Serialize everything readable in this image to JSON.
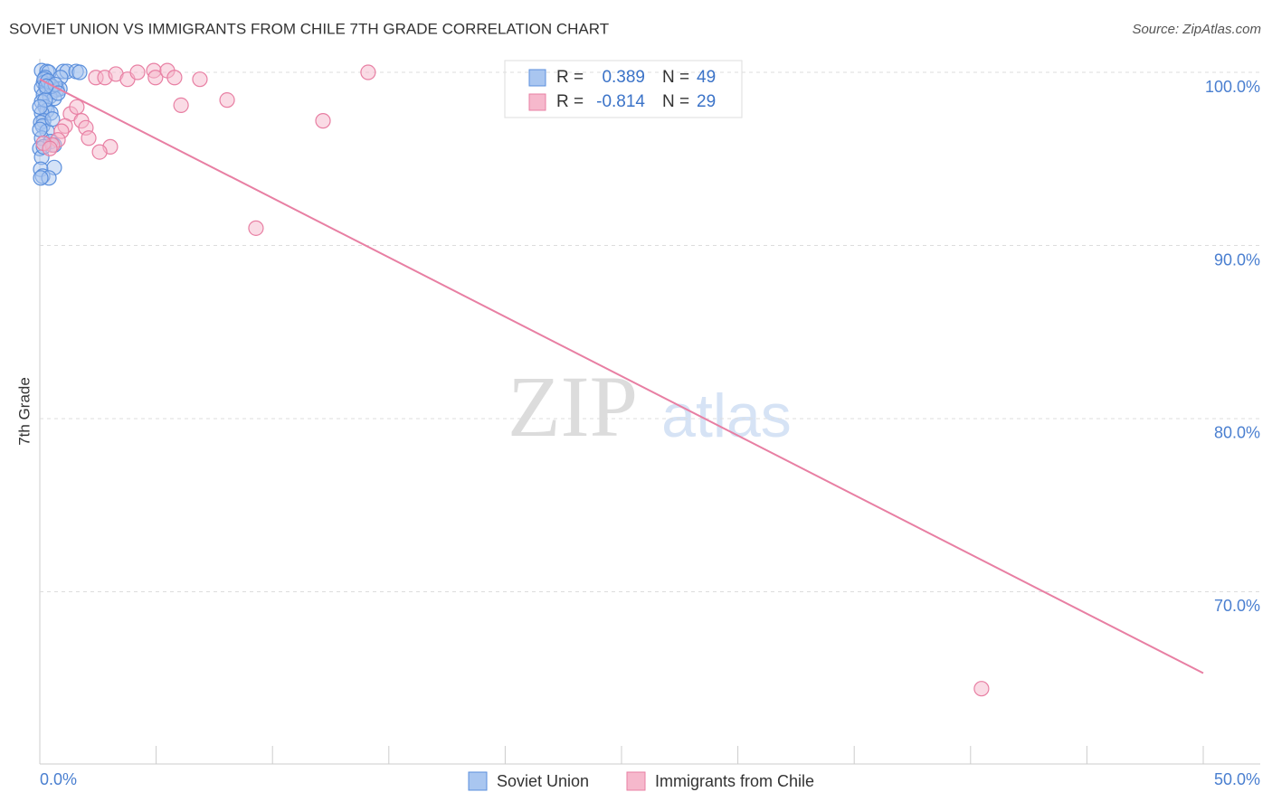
{
  "chart_data": {
    "type": "scatter",
    "title": "SOVIET UNION VS IMMIGRANTS FROM CHILE 7TH GRADE CORRELATION CHART",
    "source": "Source: ZipAtlas.com",
    "y_label": "7th Grade",
    "watermark": [
      "ZIP",
      "atlas"
    ],
    "xlim": [
      0,
      50
    ],
    "ylim": [
      60.05,
      100.8
    ],
    "xticks": [
      {
        "value": 0,
        "label": "0.0%"
      },
      {
        "value": 50,
        "label": "50.0%"
      }
    ],
    "xminorticks": [
      5,
      10,
      15,
      20,
      25,
      30,
      35,
      40,
      45
    ],
    "yticks": [
      {
        "value": 70,
        "label": "70.0%"
      },
      {
        "value": 80,
        "label": "80.0%"
      },
      {
        "value": 90,
        "label": "90.0%"
      },
      {
        "value": 100,
        "label": "100.0%"
      }
    ],
    "grid": true,
    "stat_labels": [
      "R =",
      "N ="
    ],
    "series": [
      {
        "name": "Soviet Union",
        "color": "#5b8fdc",
        "fill": "#a9c6f0",
        "R": 0.389,
        "N": 49,
        "x": [
          0.08,
          0.31,
          0.39,
          1.01,
          1.17,
          1.56,
          1.71,
          0.89,
          0.23,
          0.16,
          0.43,
          0.08,
          0.31,
          0.54,
          0.74,
          0.86,
          0.16,
          0.43,
          0.62,
          0.08,
          0.23,
          0.31,
          0.47,
          0.08,
          0.16,
          0.04,
          0.12,
          0.31,
          0.08,
          0.47,
          0.62,
          0.0,
          0.08,
          0.04,
          0.62,
          0.12,
          0.39,
          0.04,
          0.19,
          0.35,
          0.51,
          0.66,
          0.78,
          0.23,
          0.0,
          0.54,
          0.0,
          0.16,
          0.27
        ],
        "values": [
          100.1,
          100.05,
          100,
          100.05,
          100.05,
          100.05,
          100,
          99.7,
          99.7,
          99.4,
          99.3,
          99.1,
          99.0,
          98.9,
          99.0,
          99.05,
          98.7,
          98.6,
          98.5,
          98.3,
          98.0,
          97.8,
          97.65,
          97.65,
          97.2,
          97.1,
          96.9,
          96.6,
          96.2,
          96.0,
          95.8,
          95.6,
          95.1,
          94.4,
          94.5,
          94.0,
          93.9,
          93.9,
          99.6,
          99.5,
          99.2,
          99.3,
          98.8,
          98.4,
          98.0,
          97.3,
          96.7,
          95.7,
          99.2
        ]
      },
      {
        "name": "Immigrants from Chile",
        "color": "#e87fa3",
        "fill": "#f6b8cc",
        "R": -0.814,
        "N": 29,
        "x": [
          2.41,
          2.8,
          3.27,
          3.77,
          4.2,
          4.9,
          4.97,
          5.48,
          5.79,
          6.88,
          6.07,
          8.05,
          12.17,
          14.11,
          9.29,
          40.47,
          1.32,
          1.59,
          1.79,
          1.98,
          1.09,
          0.93,
          2.1,
          0.78,
          3.03,
          2.57,
          0.54,
          0.16,
          0.43
        ],
        "values": [
          99.7,
          99.7,
          99.9,
          99.6,
          100.0,
          100.1,
          99.7,
          100.1,
          99.7,
          99.6,
          98.1,
          98.4,
          97.2,
          100.0,
          91.0,
          64.4,
          97.6,
          98.0,
          97.2,
          96.8,
          96.9,
          96.6,
          96.2,
          96.1,
          95.7,
          95.4,
          95.8,
          95.9,
          95.6
        ],
        "trendline": {
          "x": [
            0,
            50
          ],
          "values": [
            99.6,
            65.3
          ]
        }
      }
    ]
  }
}
